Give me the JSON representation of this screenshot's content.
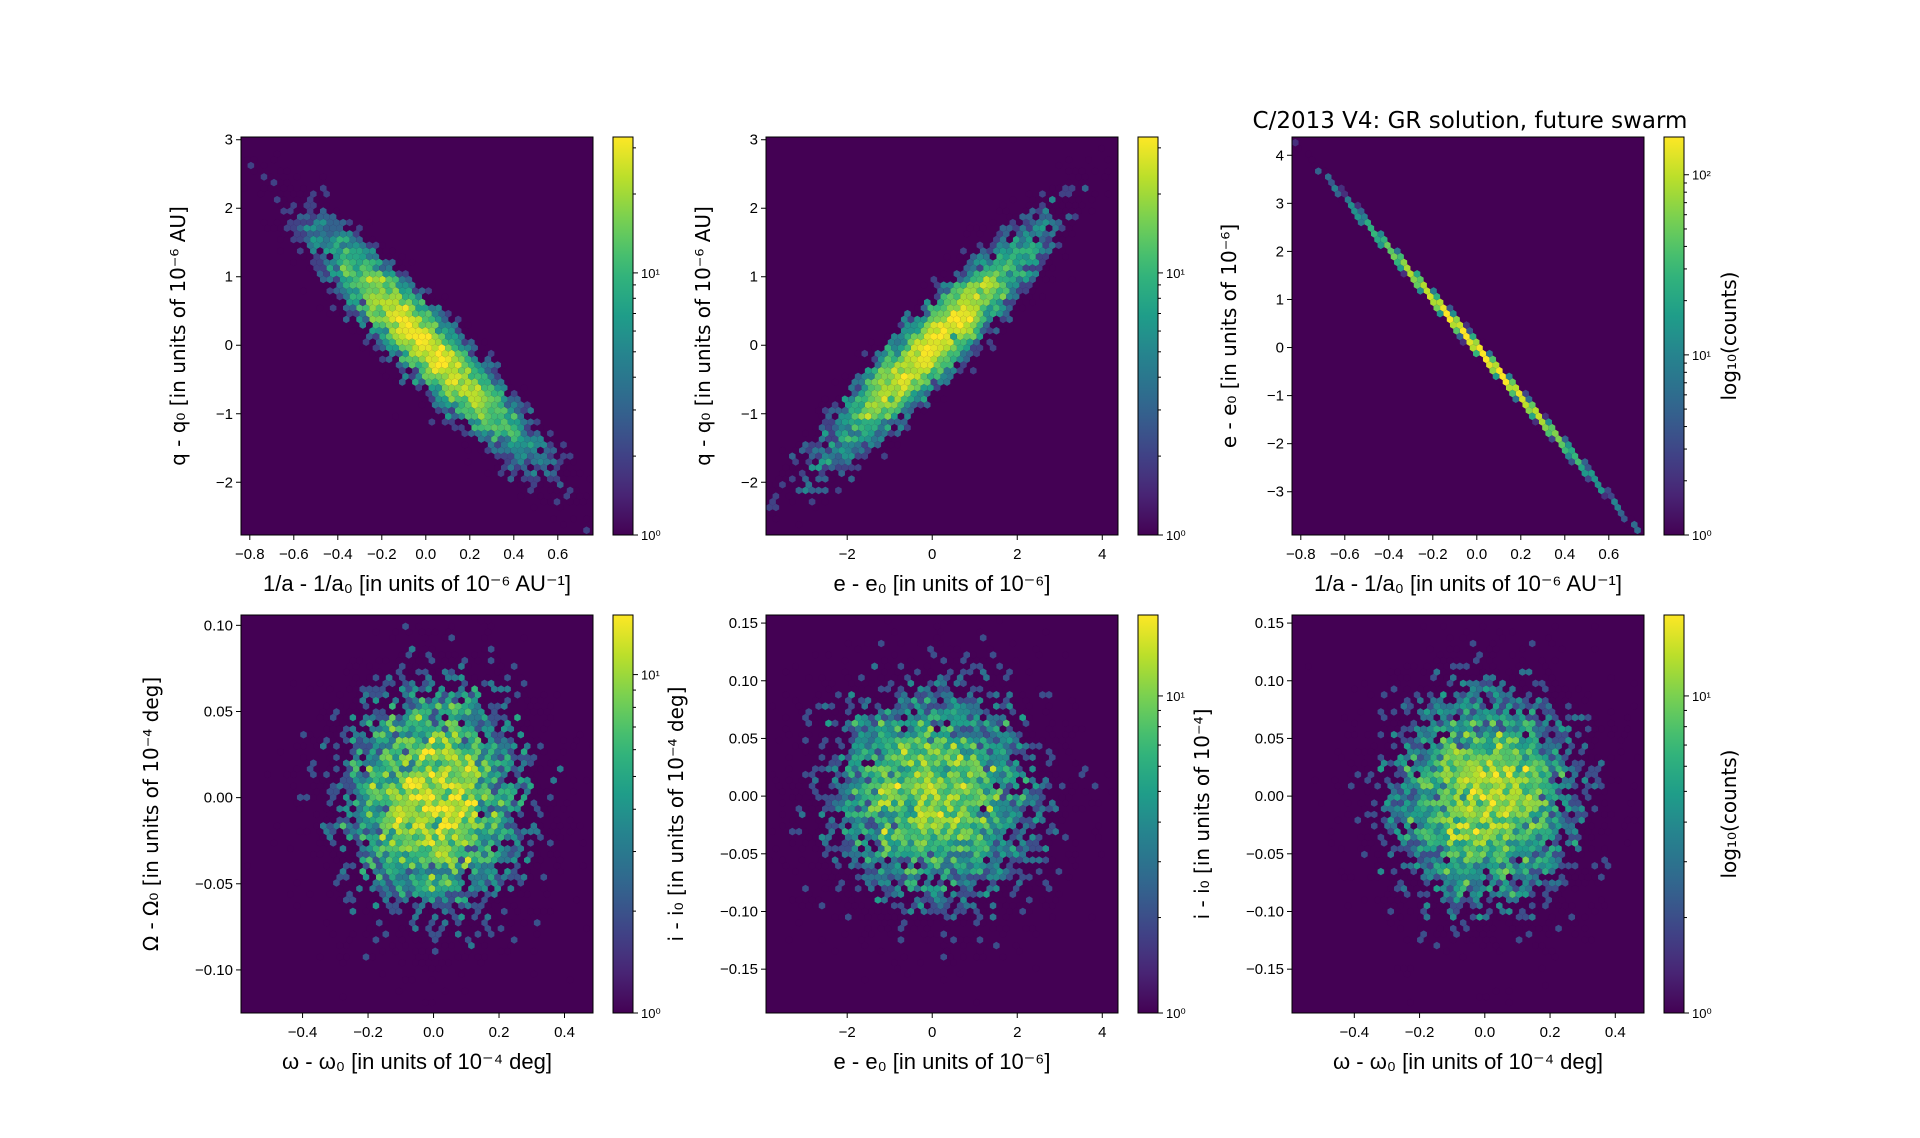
{
  "figure": {
    "title": "C/2013 V4:  GR solution, future swarm",
    "background_color": "#440154",
    "colormap": "viridis"
  },
  "chart_data": [
    {
      "type": "heatmap",
      "subtype": "hexbin",
      "xlabel": "1/a - 1/a₀ [in units of 10⁻⁶ AU⁻¹]",
      "ylabel": "q - q₀ [in units of 10⁻⁶ AU]",
      "xlim": [
        -0.84,
        0.76
      ],
      "ylim": [
        -2.77,
        3.04
      ],
      "xticks": [
        -0.8,
        -0.6,
        -0.4,
        -0.2,
        0.0,
        0.2,
        0.4,
        0.6
      ],
      "xtick_labels": [
        "−0.8",
        "−0.6",
        "−0.4",
        "−0.2",
        "0.0",
        "0.2",
        "0.4",
        "0.6"
      ],
      "yticks": [
        -2,
        -1,
        0,
        1,
        2,
        3
      ],
      "ytick_labels": [
        "−2",
        "−1",
        "0",
        "1",
        "2",
        "3"
      ],
      "colorbar": {
        "scale": "log",
        "range": [
          1,
          33
        ],
        "ticks": [
          1,
          10
        ],
        "tick_labels": [
          "10⁰",
          "10¹"
        ],
        "label": ""
      },
      "distribution": {
        "x_mean": 0,
        "y_mean": 0,
        "x_std": 0.25,
        "y_std": 0.85,
        "correlation": -0.93
      }
    },
    {
      "type": "heatmap",
      "subtype": "hexbin",
      "xlabel": "e - e₀ [in units of 10⁻⁶]",
      "ylabel": "q - q₀ [in units of 10⁻⁶ AU]",
      "xlim": [
        -3.91,
        4.37
      ],
      "ylim": [
        -2.77,
        3.04
      ],
      "xticks": [
        -2,
        0,
        2,
        4
      ],
      "xtick_labels": [
        "−2",
        "0",
        "2",
        "4"
      ],
      "yticks": [
        -2,
        -1,
        0,
        1,
        2,
        3
      ],
      "ytick_labels": [
        "−2",
        "−1",
        "0",
        "1",
        "2",
        "3"
      ],
      "colorbar": {
        "scale": "log",
        "range": [
          1,
          33
        ],
        "ticks": [
          1,
          10
        ],
        "tick_labels": [
          "10⁰",
          "10¹"
        ],
        "label": ""
      },
      "distribution": {
        "x_mean": 0,
        "y_mean": 0,
        "x_std": 1.3,
        "y_std": 0.85,
        "correlation": 0.93
      }
    },
    {
      "type": "heatmap",
      "subtype": "hexbin",
      "title": "C/2013 V4:  GR solution, future swarm",
      "xlabel": "1/a - 1/a₀ [in units of 10⁻⁶ AU⁻¹]",
      "ylabel": "e - e₀ [in units of 10⁻⁶]",
      "xlim": [
        -0.84,
        0.76
      ],
      "ylim": [
        -3.9,
        4.38
      ],
      "xticks": [
        -0.8,
        -0.6,
        -0.4,
        -0.2,
        0.0,
        0.2,
        0.4,
        0.6
      ],
      "xtick_labels": [
        "−0.8",
        "−0.6",
        "−0.4",
        "−0.2",
        "0.0",
        "0.2",
        "0.4",
        "0.6"
      ],
      "yticks": [
        -3,
        -2,
        -1,
        0,
        1,
        2,
        3,
        4
      ],
      "ytick_labels": [
        "−3",
        "−2",
        "−1",
        "0",
        "1",
        "2",
        "3",
        "4"
      ],
      "colorbar": {
        "scale": "log",
        "range": [
          1,
          162
        ],
        "ticks": [
          1,
          10,
          100
        ],
        "tick_labels": [
          "10⁰",
          "10¹",
          "10²"
        ],
        "label": "log₁₀(counts)"
      },
      "distribution": {
        "x_mean": 0,
        "y_mean": 0,
        "x_std": 0.25,
        "y_std": 1.29,
        "correlation": -0.9995
      }
    },
    {
      "type": "heatmap",
      "subtype": "hexbin",
      "xlabel": "ω - ω₀ [in units of 10⁻⁴ deg]",
      "ylabel": "Ω - Ω₀ [in units of 10⁻⁴ deg]",
      "xlim": [
        -0.588,
        0.487
      ],
      "ylim": [
        -0.125,
        0.106
      ],
      "xticks": [
        -0.4,
        -0.2,
        0.0,
        0.2,
        0.4
      ],
      "xtick_labels": [
        "−0.4",
        "−0.2",
        "0.0",
        "0.2",
        "0.4"
      ],
      "yticks": [
        -0.1,
        -0.05,
        0.0,
        0.05,
        0.1
      ],
      "ytick_labels": [
        "−0.10",
        "−0.05",
        "0.00",
        "0.05",
        "0.10"
      ],
      "colorbar": {
        "scale": "log",
        "range": [
          1,
          15
        ],
        "ticks": [
          1,
          10
        ],
        "tick_labels": [
          "10⁰",
          "10¹"
        ],
        "label": ""
      },
      "distribution": {
        "x_mean": 0,
        "y_mean": 0,
        "x_std": 0.15,
        "y_std": 0.035,
        "correlation": 0.0
      }
    },
    {
      "type": "heatmap",
      "subtype": "hexbin",
      "xlabel": "e - e₀ [in units of 10⁻⁶]",
      "ylabel": "i - i₀ [in units of 10⁻⁴ deg]",
      "xlim": [
        -3.91,
        4.37
      ],
      "ylim": [
        -0.188,
        0.157
      ],
      "xticks": [
        -2,
        0,
        2,
        4
      ],
      "xtick_labels": [
        "−2",
        "0",
        "2",
        "4"
      ],
      "yticks": [
        -0.15,
        -0.1,
        -0.05,
        0.0,
        0.05,
        0.1,
        0.15
      ],
      "ytick_labels": [
        "−0.15",
        "−0.10",
        "−0.05",
        "0.00",
        "0.05",
        "0.10",
        "0.15"
      ],
      "colorbar": {
        "scale": "log",
        "range": [
          1,
          18
        ],
        "ticks": [
          1,
          10
        ],
        "tick_labels": [
          "10⁰",
          "10¹"
        ],
        "label": ""
      },
      "distribution": {
        "x_mean": 0,
        "y_mean": 0,
        "x_std": 1.3,
        "y_std": 0.05,
        "correlation": 0.0
      }
    },
    {
      "type": "heatmap",
      "subtype": "hexbin",
      "xlabel": "ω - ω₀ [in units of 10⁻⁴ deg]",
      "ylabel": "i - i₀ [in units of 10⁻⁴]",
      "xlim": [
        -0.591,
        0.488
      ],
      "ylim": [
        -0.188,
        0.157
      ],
      "xticks": [
        -0.4,
        -0.2,
        0.0,
        0.2,
        0.4
      ],
      "xtick_labels": [
        "−0.4",
        "−0.2",
        "0.0",
        "0.2",
        "0.4"
      ],
      "yticks": [
        -0.15,
        -0.1,
        -0.05,
        0.0,
        0.05,
        0.1,
        0.15
      ],
      "ytick_labels": [
        "−0.15",
        "−0.10",
        "−0.05",
        "0.00",
        "0.05",
        "0.10",
        "0.15"
      ],
      "colorbar": {
        "scale": "log",
        "range": [
          1,
          18
        ],
        "ticks": [
          1,
          10
        ],
        "tick_labels": [
          "10⁰",
          "10¹"
        ],
        "label": "log₁₀(counts)"
      },
      "distribution": {
        "x_mean": 0,
        "y_mean": 0,
        "x_std": 0.15,
        "y_std": 0.05,
        "correlation": 0.0
      }
    }
  ]
}
